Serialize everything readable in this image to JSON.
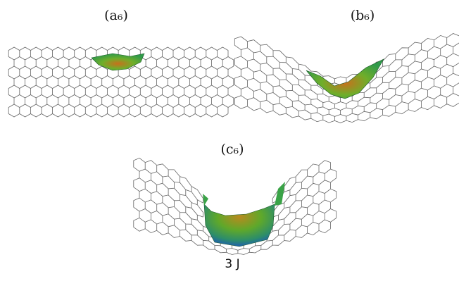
{
  "panels": [
    {
      "label": "(a₆)"
    },
    {
      "label": "(b₆)"
    },
    {
      "label": "(c₆)"
    }
  ],
  "caption": "3 J"
}
